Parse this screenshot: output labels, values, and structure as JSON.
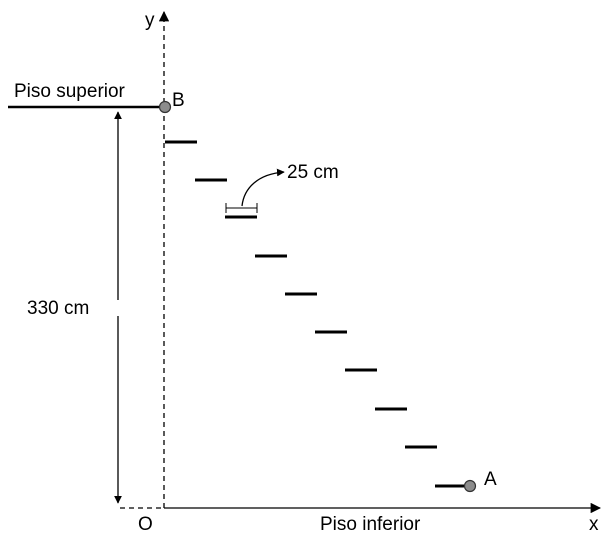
{
  "diagram": {
    "labels": {
      "y_axis": "y",
      "x_axis": "x",
      "origin": "O",
      "upper_floor": "Piso superior",
      "lower_floor": "Piso inferior",
      "point_b": "B",
      "point_a": "A",
      "height": "330 cm",
      "step_width": "25 cm"
    },
    "steps_count": 10,
    "colors": {
      "line": "#000000",
      "point_fill": "#8c8c8c",
      "point_stroke": "#333333"
    }
  }
}
